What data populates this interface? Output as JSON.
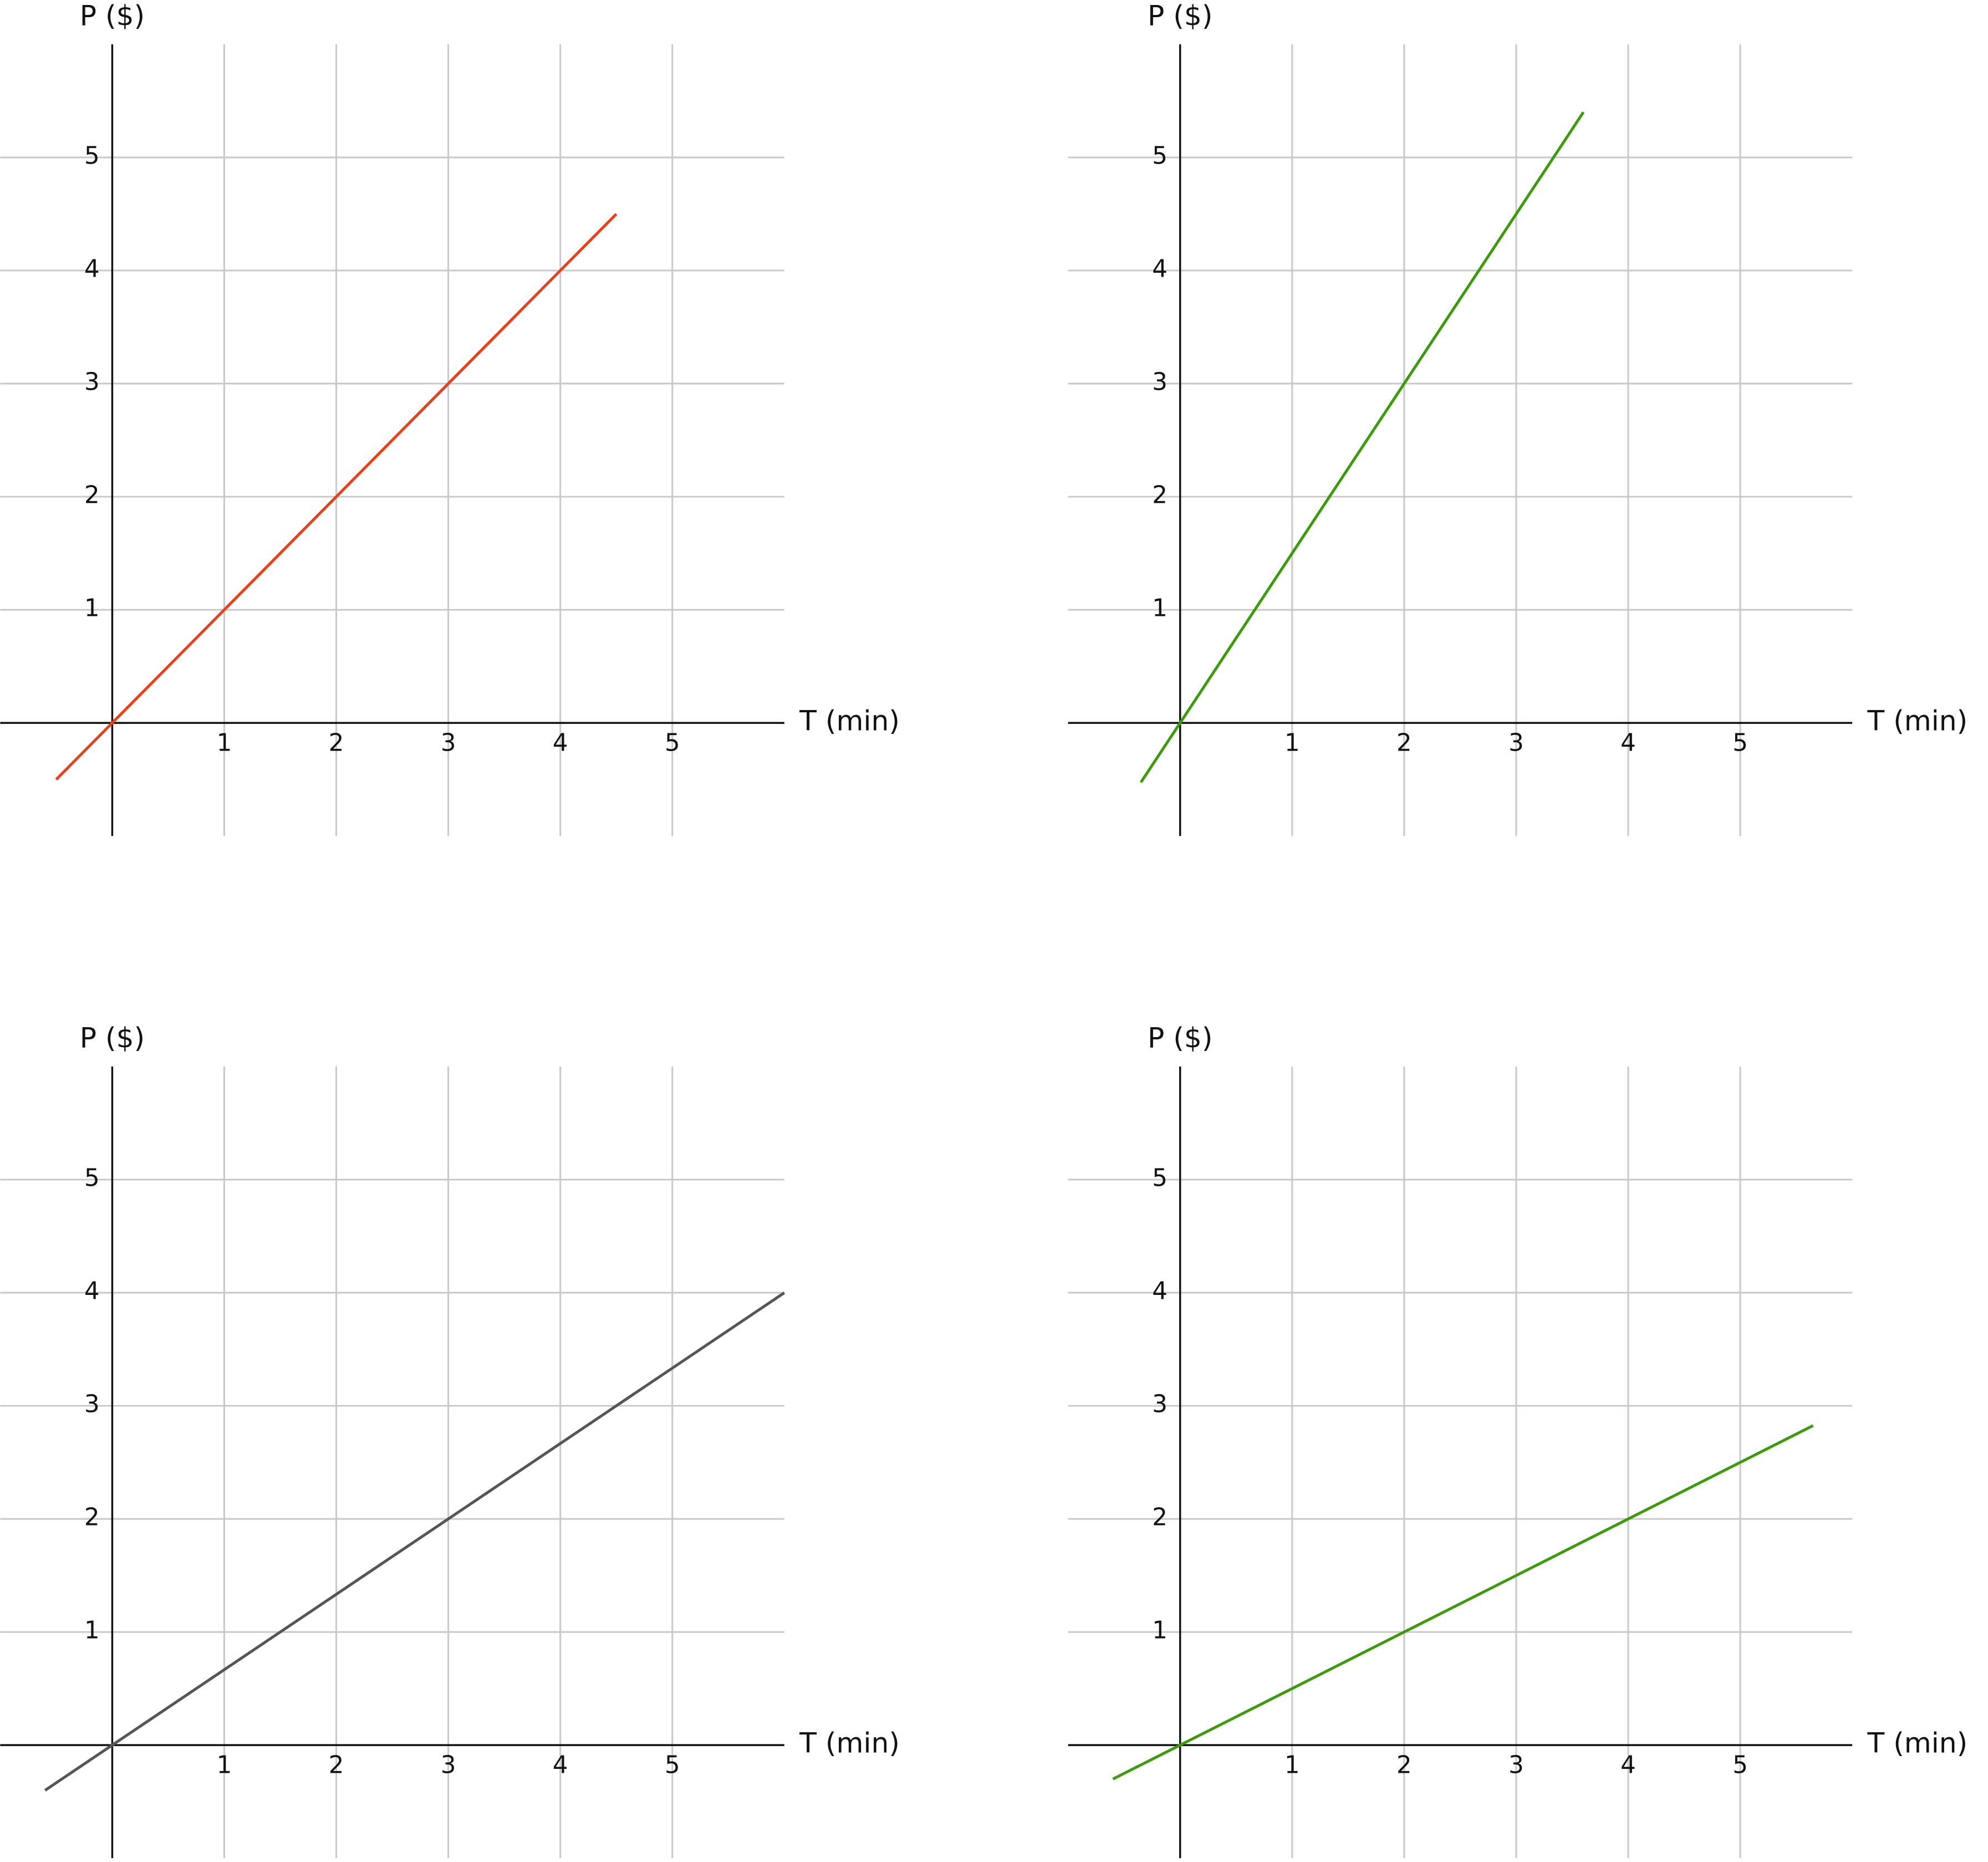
{
  "chart_data": [
    {
      "type": "line",
      "x_label": "T (min)",
      "y_label": "P ($)",
      "x": [
        -0.5,
        4.5
      ],
      "values": [
        -0.5,
        4.5
      ],
      "color": "#e8401c",
      "xlim": [
        -1,
        6
      ],
      "ylim": [
        -1,
        6
      ],
      "xticks": [
        1,
        2,
        3,
        4,
        5
      ],
      "yticks": [
        1,
        2,
        3,
        4,
        5
      ],
      "grid": true
    },
    {
      "type": "line",
      "x_label": "T (min)",
      "y_label": "P ($)",
      "x": [
        -0.35,
        3.6
      ],
      "values": [
        -0.525,
        5.4
      ],
      "color": "#3c9a0c",
      "xlim": [
        -1,
        6
      ],
      "ylim": [
        -1,
        6
      ],
      "xticks": [
        1,
        2,
        3,
        4,
        5
      ],
      "yticks": [
        1,
        2,
        3,
        4,
        5
      ],
      "grid": true
    },
    {
      "type": "line",
      "x_label": "T (min)",
      "y_label": "P ($)",
      "x": [
        -0.6,
        6
      ],
      "values": [
        -0.4,
        4
      ],
      "color": "#555555",
      "xlim": [
        -1,
        6
      ],
      "ylim": [
        -1,
        6
      ],
      "xticks": [
        1,
        2,
        3,
        4,
        5
      ],
      "yticks": [
        1,
        2,
        3,
        4,
        5
      ],
      "grid": true
    },
    {
      "type": "line",
      "x_label": "T (min)",
      "y_label": "P ($)",
      "x": [
        -0.6,
        5.65
      ],
      "values": [
        -0.3,
        2.825
      ],
      "color": "#3c9a0c",
      "xlim": [
        -1,
        6
      ],
      "ylim": [
        -1,
        6
      ],
      "xticks": [
        1,
        2,
        3,
        4,
        5
      ],
      "yticks": [
        1,
        2,
        3,
        4,
        5
      ],
      "grid": true
    }
  ]
}
